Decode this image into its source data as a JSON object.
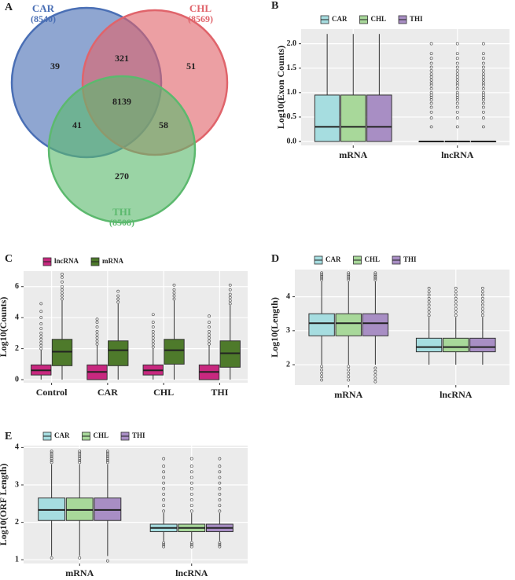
{
  "chart_data": [
    {
      "type": "venn",
      "panel": "A",
      "sets": [
        {
          "name": "CAR",
          "total": {
            "value": 8540,
            "label": "(8540)"
          },
          "color": "#4a6fb5"
        },
        {
          "name": "CHL",
          "total": {
            "value": 8569,
            "label": "(8569)"
          },
          "color": "#e0646b"
        },
        {
          "name": "THI",
          "total": {
            "value": 8508,
            "label": "(8508)"
          },
          "color": "#5cb96e"
        }
      ],
      "regions": [
        {
          "sets": [
            "CAR"
          ],
          "value": 39
        },
        {
          "sets": [
            "CAR",
            "CHL"
          ],
          "value": 321
        },
        {
          "sets": [
            "CHL"
          ],
          "value": 51
        },
        {
          "sets": [
            "CAR",
            "CHL",
            "THI"
          ],
          "value": 8139
        },
        {
          "sets": [
            "CAR",
            "THI"
          ],
          "value": 41
        },
        {
          "sets": [
            "CHL",
            "THI"
          ],
          "value": 58
        },
        {
          "sets": [
            "THI"
          ],
          "value": 270
        }
      ]
    },
    {
      "type": "box",
      "panel": "B",
      "y_label": "Log10(Exon Counts)",
      "legend": "top",
      "grid": true,
      "categories": [
        "mRNA",
        "lncRNA"
      ],
      "ylim": [
        -0.08,
        2.3
      ],
      "yticks": [
        {
          "value": 0,
          "label": "0.0"
        },
        0.5,
        {
          "value": 1,
          "label": "1.0"
        },
        1.5,
        {
          "value": 2,
          "label": "2.0"
        }
      ],
      "series": [
        {
          "name": "CAR",
          "color": "#a6dde0",
          "whislo": [
            0,
            0
          ],
          "q1": [
            0,
            0
          ],
          "median": [
            0.3,
            0
          ],
          "q3": [
            0.95,
            0
          ],
          "whishi": [
            2.2,
            0
          ],
          "outliers": [
            [],
            [
              0.3,
              0.48,
              0.6,
              0.7,
              0.78,
              0.85,
              0.9,
              0.95,
              1.0,
              1.08,
              1.15,
              1.2,
              1.26,
              1.32,
              1.38,
              1.45,
              1.52,
              1.6,
              1.7,
              1.8,
              2.0
            ]
          ]
        },
        {
          "name": "CHL",
          "color": "#a8d89a",
          "whislo": [
            0,
            0
          ],
          "q1": [
            0,
            0
          ],
          "median": [
            0.3,
            0
          ],
          "q3": [
            0.95,
            0
          ],
          "whishi": [
            2.2,
            0
          ],
          "outliers": [
            [],
            [
              0.3,
              0.48,
              0.6,
              0.7,
              0.78,
              0.85,
              0.9,
              0.95,
              1.0,
              1.08,
              1.15,
              1.2,
              1.26,
              1.32,
              1.38,
              1.45,
              1.52,
              1.6,
              1.7,
              1.8,
              2.0
            ]
          ]
        },
        {
          "name": "THI",
          "color": "#a88ec4",
          "whislo": [
            0,
            0
          ],
          "q1": [
            0,
            0
          ],
          "median": [
            0.3,
            0
          ],
          "q3": [
            0.95,
            0
          ],
          "whishi": [
            2.2,
            0
          ],
          "outliers": [
            [],
            [
              0.3,
              0.48,
              0.6,
              0.7,
              0.78,
              0.85,
              0.9,
              0.95,
              1.0,
              1.08,
              1.15,
              1.2,
              1.26,
              1.32,
              1.38,
              1.45,
              1.52,
              1.6,
              1.7,
              1.8,
              2.0
            ]
          ]
        }
      ]
    },
    {
      "type": "box",
      "panel": "C",
      "y_label": "Log10(Counts)",
      "legend": "top",
      "grid": true,
      "categories": [
        "Control",
        "CAR",
        "CHL",
        "THI"
      ],
      "ylim": [
        -0.2,
        7
      ],
      "yticks": [
        0,
        2,
        4,
        6
      ],
      "series": [
        {
          "name": "lncRNA",
          "color": "#c8287f",
          "whislo": [
            0,
            0,
            0,
            0
          ],
          "q1": [
            0.3,
            0,
            0.3,
            0
          ],
          "median": [
            0.6,
            0.5,
            0.6,
            0.5
          ],
          "q3": [
            0.95,
            0.95,
            0.95,
            0.95
          ],
          "whishi": [
            1.9,
            2.2,
            2.0,
            2.2
          ],
          "outliers": [
            [
              2.0,
              2.2,
              2.4,
              2.6,
              2.8,
              3.0,
              3.3,
              3.6,
              4.0,
              4.4,
              4.9
            ],
            [
              2.3,
              2.5,
              2.7,
              2.9,
              3.1,
              3.4,
              3.7,
              3.9
            ],
            [
              2.1,
              2.3,
              2.5,
              2.7,
              2.9,
              3.1,
              3.4,
              3.7,
              4.2
            ],
            [
              2.3,
              2.5,
              2.7,
              2.9,
              3.1,
              3.4,
              3.7,
              4.1
            ]
          ]
        },
        {
          "name": "mRNA",
          "color": "#4e7a2b",
          "whislo": [
            0,
            0,
            0,
            0
          ],
          "q1": [
            0.9,
            0.9,
            1.0,
            0.8
          ],
          "median": [
            1.8,
            1.9,
            1.9,
            1.7
          ],
          "q3": [
            2.6,
            2.5,
            2.6,
            2.5
          ],
          "whishi": [
            5.1,
            4.9,
            5.1,
            4.8
          ],
          "outliers": [
            [
              5.2,
              5.4,
              5.6,
              5.8,
              6.0,
              6.3,
              6.6,
              6.8
            ],
            [
              5.0,
              5.2,
              5.4,
              5.7
            ],
            [
              5.2,
              5.4,
              5.6,
              5.8,
              6.1
            ],
            [
              4.9,
              5.1,
              5.3,
              5.5,
              5.8,
              6.1
            ]
          ]
        }
      ]
    },
    {
      "type": "box",
      "panel": "D",
      "y_label": "Log10(Length)",
      "legend": "top",
      "grid": true,
      "categories": [
        "mRNA",
        "lncRNA"
      ],
      "ylim": [
        1.4,
        4.8
      ],
      "yticks": [
        2,
        3,
        4
      ],
      "series": [
        {
          "name": "CAR",
          "color": "#a6dde0",
          "whislo": [
            2.0,
            2.0
          ],
          "q1": [
            2.85,
            2.38
          ],
          "median": [
            3.22,
            2.52
          ],
          "q3": [
            3.5,
            2.78
          ],
          "whishi": [
            4.45,
            3.4
          ],
          "outliers": [
            [
              1.55,
              1.65,
              1.75,
              1.85,
              1.95,
              4.5,
              4.55,
              4.6,
              4.65,
              4.7
            ],
            [
              3.45,
              3.55,
              3.65,
              3.75,
              3.85,
              3.95,
              4.05,
              4.15,
              4.25
            ]
          ]
        },
        {
          "name": "CHL",
          "color": "#a8d89a",
          "whislo": [
            2.0,
            2.0
          ],
          "q1": [
            2.85,
            2.38
          ],
          "median": [
            3.22,
            2.52
          ],
          "q3": [
            3.5,
            2.78
          ],
          "whishi": [
            4.45,
            3.4
          ],
          "outliers": [
            [
              1.55,
              1.65,
              1.75,
              1.85,
              1.95,
              4.5,
              4.55,
              4.6,
              4.65,
              4.7
            ],
            [
              3.45,
              3.55,
              3.65,
              3.75,
              3.85,
              3.95,
              4.05,
              4.15,
              4.25
            ]
          ]
        },
        {
          "name": "THI",
          "color": "#a88ec4",
          "whislo": [
            2.0,
            2.0
          ],
          "q1": [
            2.85,
            2.38
          ],
          "median": [
            3.22,
            2.52
          ],
          "q3": [
            3.5,
            2.78
          ],
          "whishi": [
            4.45,
            3.4
          ],
          "outliers": [
            [
              1.5,
              1.6,
              1.7,
              1.8,
              1.9,
              4.5,
              4.55,
              4.6,
              4.65,
              4.7
            ],
            [
              3.45,
              3.55,
              3.65,
              3.75,
              3.85,
              3.95,
              4.05,
              4.15,
              4.25
            ]
          ]
        }
      ]
    },
    {
      "type": "box",
      "panel": "E",
      "y_label": "Log10(ORF Length)",
      "legend": "top",
      "grid": true,
      "categories": [
        "mRNA",
        "lncRNA"
      ],
      "ylim": [
        0.9,
        4.05
      ],
      "yticks": [
        1,
        2,
        3,
        4
      ],
      "series": [
        {
          "name": "CAR",
          "color": "#a6dde0",
          "whislo": [
            1.1,
            1.5
          ],
          "q1": [
            2.05,
            1.75
          ],
          "median": [
            2.33,
            1.85
          ],
          "q3": [
            2.65,
            1.95
          ],
          "whishi": [
            3.55,
            2.25
          ],
          "outliers": [
            [
              1.05,
              3.6,
              3.65,
              3.7,
              3.75,
              3.8,
              3.85,
              3.9
            ],
            [
              1.35,
              1.4,
              1.45,
              2.3,
              2.45,
              2.6,
              2.75,
              2.9,
              3.05,
              3.2,
              3.35,
              3.5,
              3.7
            ]
          ]
        },
        {
          "name": "CHL",
          "color": "#a8d89a",
          "whislo": [
            1.1,
            1.5
          ],
          "q1": [
            2.05,
            1.75
          ],
          "median": [
            2.33,
            1.85
          ],
          "q3": [
            2.65,
            1.95
          ],
          "whishi": [
            3.55,
            2.25
          ],
          "outliers": [
            [
              1.05,
              3.6,
              3.65,
              3.7,
              3.75,
              3.8,
              3.85,
              3.9
            ],
            [
              1.35,
              1.4,
              1.45,
              2.3,
              2.45,
              2.6,
              2.75,
              2.9,
              3.05,
              3.2,
              3.35,
              3.5,
              3.7
            ]
          ]
        },
        {
          "name": "THI",
          "color": "#a88ec4",
          "whislo": [
            1.1,
            1.5
          ],
          "q1": [
            2.05,
            1.75
          ],
          "median": [
            2.33,
            1.85
          ],
          "q3": [
            2.65,
            1.95
          ],
          "whishi": [
            3.55,
            2.25
          ],
          "outliers": [
            [
              0.97,
              3.6,
              3.65,
              3.7,
              3.75,
              3.8,
              3.85,
              3.9
            ],
            [
              1.35,
              1.4,
              1.45,
              2.3,
              2.45,
              2.6,
              2.75,
              2.9,
              3.05,
              3.2,
              3.35,
              3.5,
              3.7
            ]
          ]
        }
      ]
    }
  ]
}
